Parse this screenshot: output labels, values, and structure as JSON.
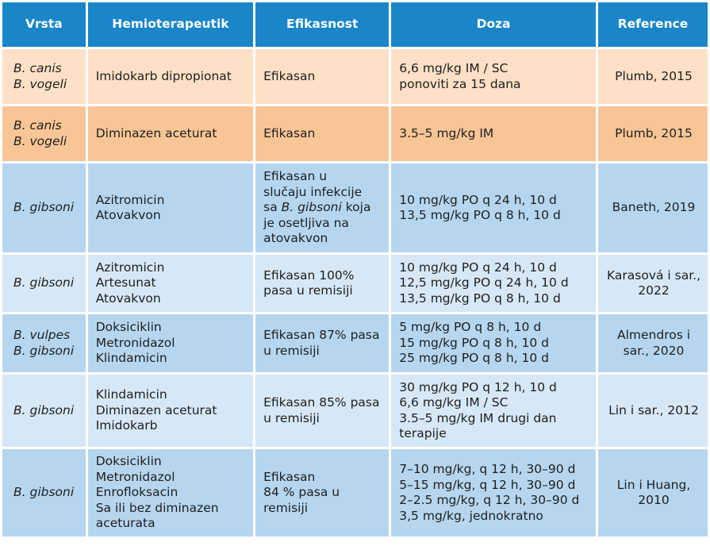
{
  "headers": [
    "Vrsta",
    "Hemioterapeutik",
    "Efikasnost",
    "Doza",
    "Reference"
  ],
  "rows": [
    {
      "species": [
        "B. canis",
        "B. vogeli"
      ],
      "drugs": [
        "Imidokarb dipropionat"
      ],
      "efficacy": [
        "Efikasan"
      ],
      "dose": [
        "6,6 mg/kg IM / SC",
        "ponoviti za 15 dana"
      ],
      "reference": [
        "Plumb, 2015"
      ]
    },
    {
      "species": [
        "B. canis",
        "B. vogeli"
      ],
      "drugs": [
        "Diminazen aceturat"
      ],
      "efficacy": [
        "Efikasan"
      ],
      "dose": [
        "3.5–5 mg/kg IM"
      ],
      "reference": [
        "Plumb, 2015"
      ]
    },
    {
      "species": [
        "B. gibsoni"
      ],
      "drugs": [
        "Azitromicin",
        "Atovakvon"
      ],
      "efficacy": [
        "Efikasan u",
        "slučaju infekcije",
        "sa",
        "B. gibsoni",
        "koja",
        "je osetljiva na",
        "atovakvon"
      ],
      "dose": [
        "10 mg/kg PO q 24 h, 10 d",
        "13,5 mg/kg PO q 8 h, 10 d"
      ],
      "reference": [
        "Baneth, 2019"
      ]
    },
    {
      "species": [
        "B. gibsoni"
      ],
      "drugs": [
        "Azitromicin",
        "Artesunat",
        "Atovakvon"
      ],
      "efficacy": [
        "Efikasan 100%",
        "pasa u remisiji"
      ],
      "dose": [
        "10 mg/kg PO q 24 h, 10 d",
        "12,5 mg/kg PO q 24 h, 10 d",
        "13,5 mg/kg PO q 8 h, 10 d"
      ],
      "reference": [
        "Karasová i sar.,",
        "2022"
      ]
    },
    {
      "species": [
        "B. vulpes",
        "B. gibsoni"
      ],
      "drugs": [
        "Doksiciklin",
        "Metronidazol",
        "Klindamicin"
      ],
      "efficacy": [
        "Efikasan 87% pasa",
        "u remisiji"
      ],
      "dose": [
        "5 mg/kg PO q 8 h, 10 d",
        "15 mg/kg PO q 8 h, 10 d",
        "25 mg/kg PO q 8 h, 10 d"
      ],
      "reference": [
        "Almendros i",
        "sar., 2020"
      ]
    },
    {
      "species": [
        "B. gibsoni"
      ],
      "drugs": [
        "Klindamicin",
        "Diminazen aceturat",
        "Imidokarb"
      ],
      "efficacy": [
        "Efikasan 85% pasa",
        "u remisiji"
      ],
      "dose": [
        "30 mg/kg PO q 12 h, 10 d",
        "6,6 mg/kg IM / SC",
        "3.5–5 mg/kg IM drugi dan",
        "terapije"
      ],
      "reference": [
        "Lin i sar., 2012"
      ]
    },
    {
      "species": [
        "B. gibsoni"
      ],
      "drugs": [
        "Doksiciklin",
        "Metronidazol",
        "Enrofloksacin",
        "Sa ili bez diminazen",
        "aceturata"
      ],
      "efficacy": [
        "Efikasan",
        "84 % pasa u",
        "remisiji"
      ],
      "dose": [
        "7–10 mg/kg, q 12 h, 30–90 d",
        "5–15 mg/kg, q 12 h, 30–90 d",
        "2–2.5 mg/kg, q 12 h, 30–90 d",
        "3,5 mg/kg, jednokratno"
      ],
      "reference": [
        "Lin i Huang,",
        "2010"
      ]
    }
  ]
}
